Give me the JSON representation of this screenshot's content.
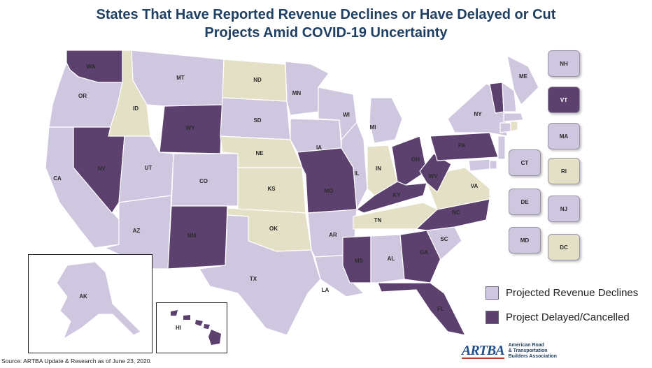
{
  "title_line1": "States That Have Reported Revenue Declines or Have Delayed or Cut",
  "title_line2": "Projects Amid COVID-19 Uncertainty",
  "colors": {
    "revenue_declines": "#cfc6df",
    "delayed_cancelled": "#5c416f",
    "no_report": "#e3e0c6",
    "title": "#1f3f63"
  },
  "legend": [
    {
      "label": "Projected Revenue Declines",
      "status": "revenue_declines"
    },
    {
      "label": "Project Delayed/Cancelled",
      "status": "delayed_cancelled"
    }
  ],
  "states": [
    {
      "abbr": "WA",
      "status": "delayed_cancelled"
    },
    {
      "abbr": "OR",
      "status": "revenue_declines"
    },
    {
      "abbr": "CA",
      "status": "revenue_declines"
    },
    {
      "abbr": "ID",
      "status": "no_report"
    },
    {
      "abbr": "NV",
      "status": "delayed_cancelled"
    },
    {
      "abbr": "MT",
      "status": "revenue_declines"
    },
    {
      "abbr": "WY",
      "status": "delayed_cancelled"
    },
    {
      "abbr": "UT",
      "status": "revenue_declines"
    },
    {
      "abbr": "AZ",
      "status": "revenue_declines"
    },
    {
      "abbr": "CO",
      "status": "revenue_declines"
    },
    {
      "abbr": "NM",
      "status": "delayed_cancelled"
    },
    {
      "abbr": "ND",
      "status": "no_report"
    },
    {
      "abbr": "SD",
      "status": "revenue_declines"
    },
    {
      "abbr": "NE",
      "status": "no_report"
    },
    {
      "abbr": "KS",
      "status": "no_report"
    },
    {
      "abbr": "OK",
      "status": "no_report"
    },
    {
      "abbr": "TX",
      "status": "revenue_declines"
    },
    {
      "abbr": "MN",
      "status": "revenue_declines"
    },
    {
      "abbr": "IA",
      "status": "revenue_declines"
    },
    {
      "abbr": "MO",
      "status": "delayed_cancelled"
    },
    {
      "abbr": "AR",
      "status": "revenue_declines"
    },
    {
      "abbr": "LA",
      "status": "revenue_declines"
    },
    {
      "abbr": "WI",
      "status": "revenue_declines"
    },
    {
      "abbr": "IL",
      "status": "revenue_declines"
    },
    {
      "abbr": "MI",
      "status": "revenue_declines"
    },
    {
      "abbr": "IN",
      "status": "no_report"
    },
    {
      "abbr": "OH",
      "status": "delayed_cancelled"
    },
    {
      "abbr": "KY",
      "status": "delayed_cancelled"
    },
    {
      "abbr": "TN",
      "status": "no_report"
    },
    {
      "abbr": "MS",
      "status": "delayed_cancelled"
    },
    {
      "abbr": "AL",
      "status": "revenue_declines"
    },
    {
      "abbr": "GA",
      "status": "delayed_cancelled"
    },
    {
      "abbr": "FL",
      "status": "delayed_cancelled"
    },
    {
      "abbr": "SC",
      "status": "revenue_declines"
    },
    {
      "abbr": "NC",
      "status": "delayed_cancelled"
    },
    {
      "abbr": "VA",
      "status": "no_report"
    },
    {
      "abbr": "WV",
      "status": "delayed_cancelled"
    },
    {
      "abbr": "PA",
      "status": "delayed_cancelled"
    },
    {
      "abbr": "NY",
      "status": "revenue_declines"
    },
    {
      "abbr": "ME",
      "status": "revenue_declines"
    },
    {
      "abbr": "AK",
      "status": "revenue_declines"
    },
    {
      "abbr": "HI",
      "status": "delayed_cancelled"
    }
  ],
  "small_states": [
    {
      "abbr": "NH",
      "status": "revenue_declines"
    },
    {
      "abbr": "VT",
      "status": "delayed_cancelled"
    },
    {
      "abbr": "MA",
      "status": "revenue_declines"
    },
    {
      "abbr": "CT",
      "status": "revenue_declines"
    },
    {
      "abbr": "RI",
      "status": "no_report"
    },
    {
      "abbr": "DE",
      "status": "revenue_declines"
    },
    {
      "abbr": "NJ",
      "status": "revenue_declines"
    },
    {
      "abbr": "MD",
      "status": "revenue_declines"
    },
    {
      "abbr": "DC",
      "status": "no_report"
    }
  ],
  "source": "Source: ARTBA Update & Research as of June 23, 2020.",
  "logo": {
    "mark": "ARTBA",
    "line1": "American Road",
    "line2": "& Transportation",
    "line3": "Builders Association"
  }
}
